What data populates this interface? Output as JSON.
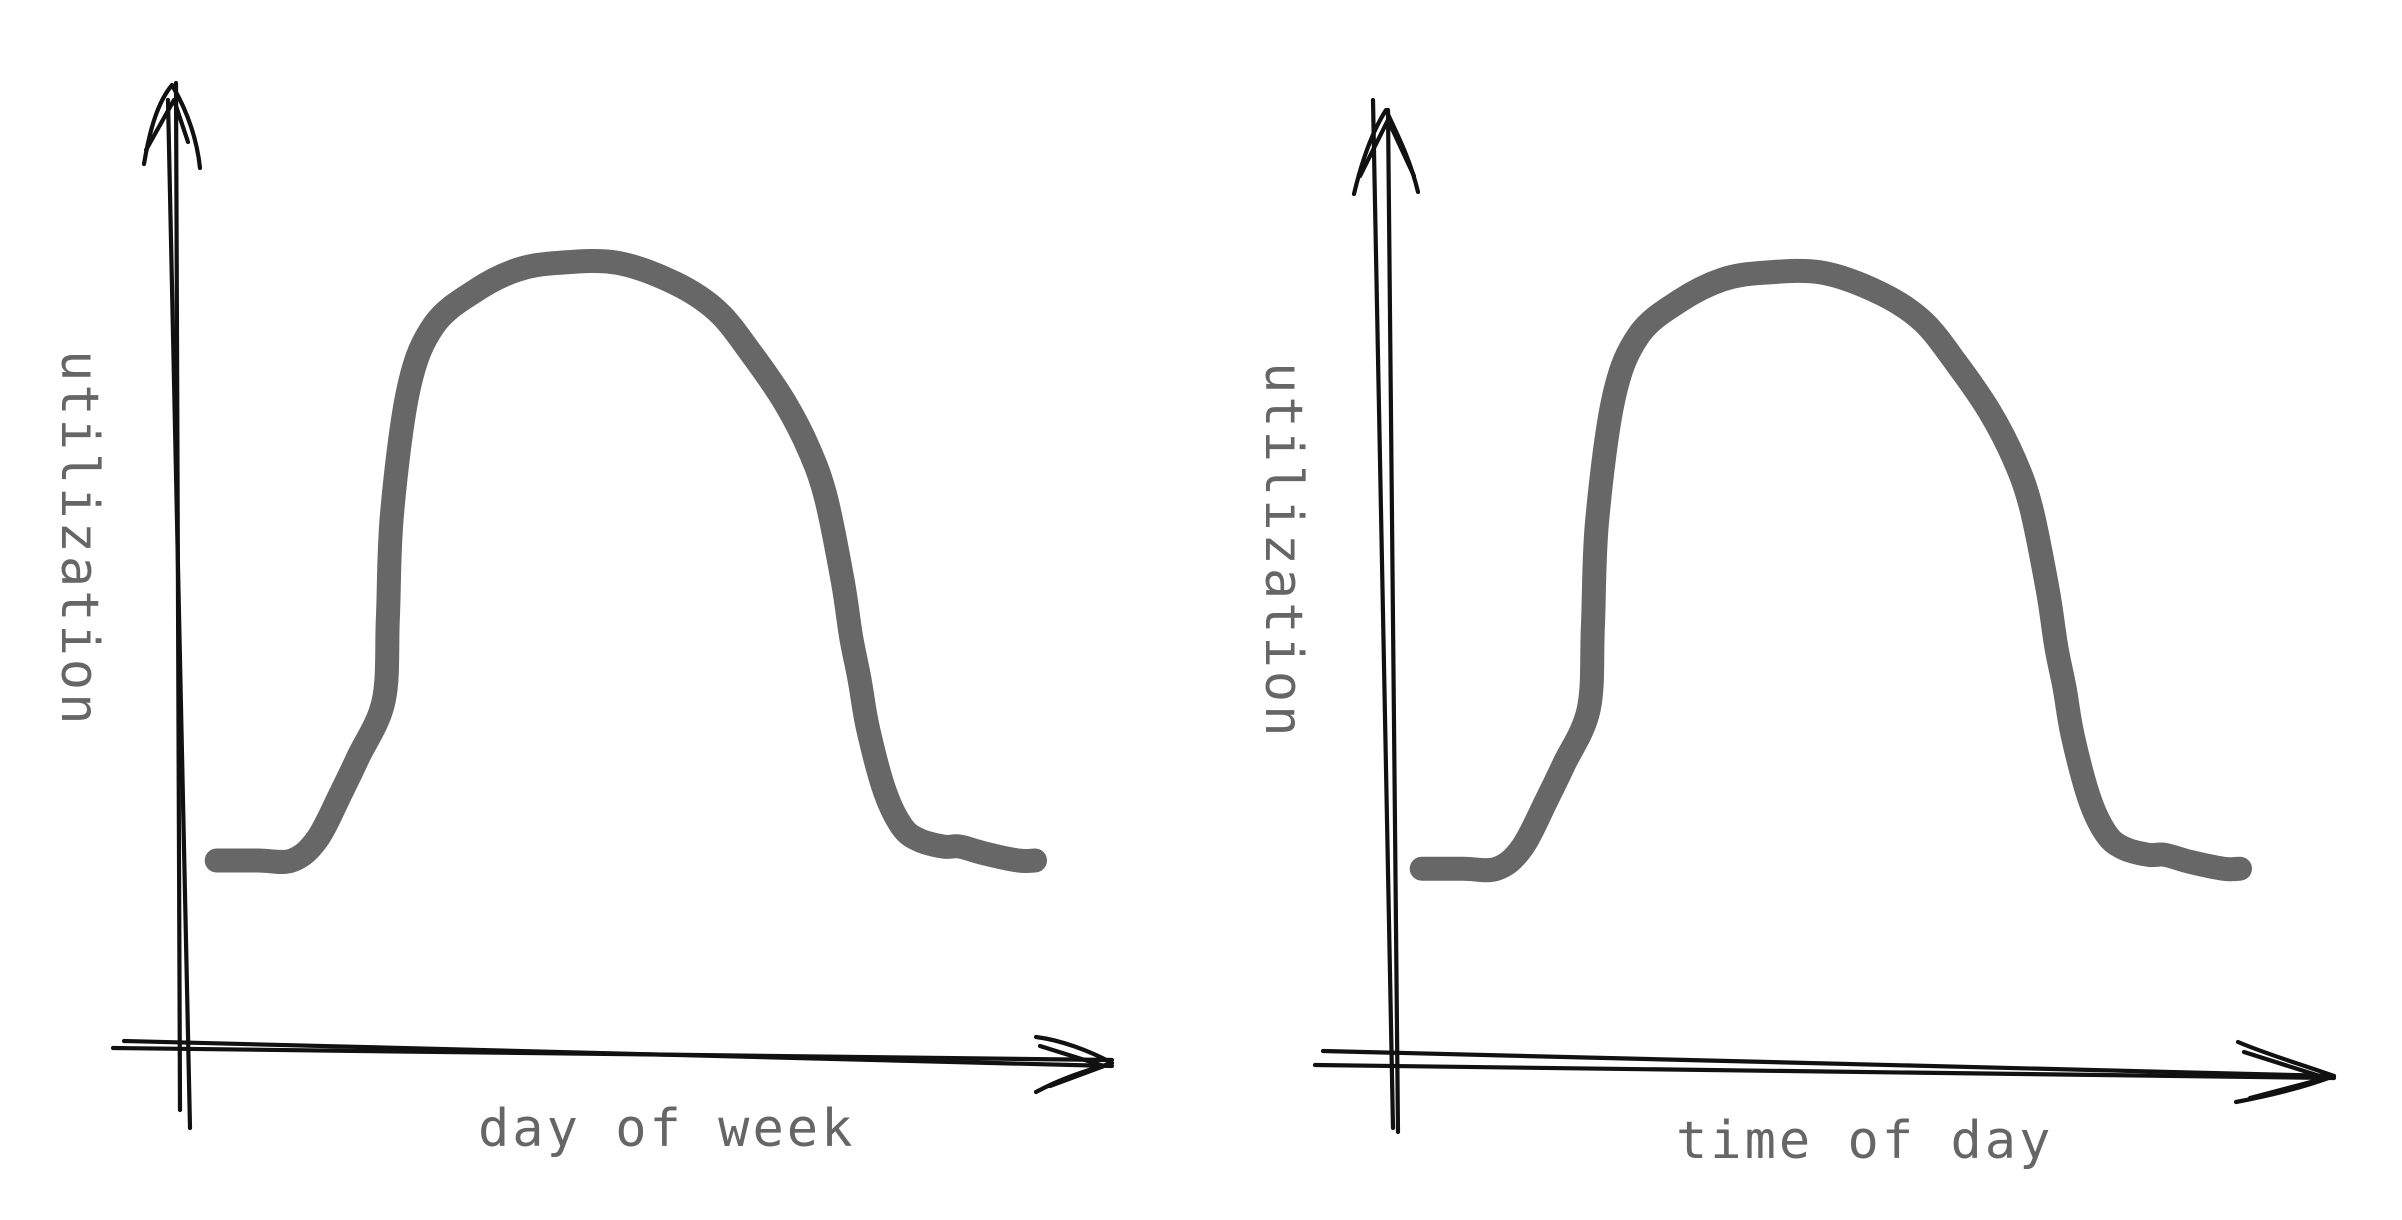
{
  "chart_data": [
    {
      "type": "line",
      "title": "",
      "xlabel": "day of week",
      "ylabel": "utilization",
      "x_ticks": [],
      "y_ticks": [],
      "grid": false,
      "legend": "none",
      "xlim": [
        0,
        1
      ],
      "ylim": [
        0,
        1
      ],
      "series": [
        {
          "color": "#676767",
          "x": [
            0.02,
            0.07,
            0.11,
            0.14,
            0.17,
            0.19,
            0.22,
            0.225,
            0.23,
            0.25,
            0.28,
            0.33,
            0.38,
            0.43,
            0.5,
            0.57,
            0.62,
            0.66,
            0.7,
            0.73,
            0.75,
            0.77,
            0.78,
            0.79,
            0.8,
            0.82,
            0.84,
            0.86,
            0.89,
            0.91,
            0.94,
            0.98,
            1.0
          ],
          "values": [
            0.1,
            0.1,
            0.1,
            0.13,
            0.2,
            0.25,
            0.33,
            0.45,
            0.6,
            0.78,
            0.87,
            0.92,
            0.95,
            0.96,
            0.96,
            0.93,
            0.89,
            0.83,
            0.76,
            0.69,
            0.62,
            0.5,
            0.42,
            0.36,
            0.29,
            0.2,
            0.15,
            0.13,
            0.12,
            0.12,
            0.11,
            0.1,
            0.1
          ]
        }
      ]
    },
    {
      "type": "line",
      "title": "",
      "xlabel": "time of day",
      "ylabel": "utilization",
      "x_ticks": [],
      "y_ticks": [],
      "grid": false,
      "legend": "none",
      "xlim": [
        0,
        1
      ],
      "ylim": [
        0,
        1
      ],
      "series": [
        {
          "color": "#676767",
          "x": [
            0.02,
            0.07,
            0.11,
            0.14,
            0.17,
            0.19,
            0.22,
            0.225,
            0.23,
            0.25,
            0.28,
            0.33,
            0.38,
            0.43,
            0.5,
            0.57,
            0.62,
            0.66,
            0.7,
            0.73,
            0.75,
            0.77,
            0.78,
            0.79,
            0.8,
            0.82,
            0.84,
            0.86,
            0.89,
            0.91,
            0.94,
            0.98,
            1.0
          ],
          "values": [
            0.1,
            0.1,
            0.1,
            0.13,
            0.2,
            0.25,
            0.33,
            0.45,
            0.6,
            0.78,
            0.87,
            0.92,
            0.95,
            0.96,
            0.96,
            0.93,
            0.89,
            0.83,
            0.76,
            0.69,
            0.62,
            0.5,
            0.42,
            0.36,
            0.29,
            0.2,
            0.15,
            0.13,
            0.12,
            0.12,
            0.11,
            0.1,
            0.1
          ]
        }
      ]
    }
  ]
}
